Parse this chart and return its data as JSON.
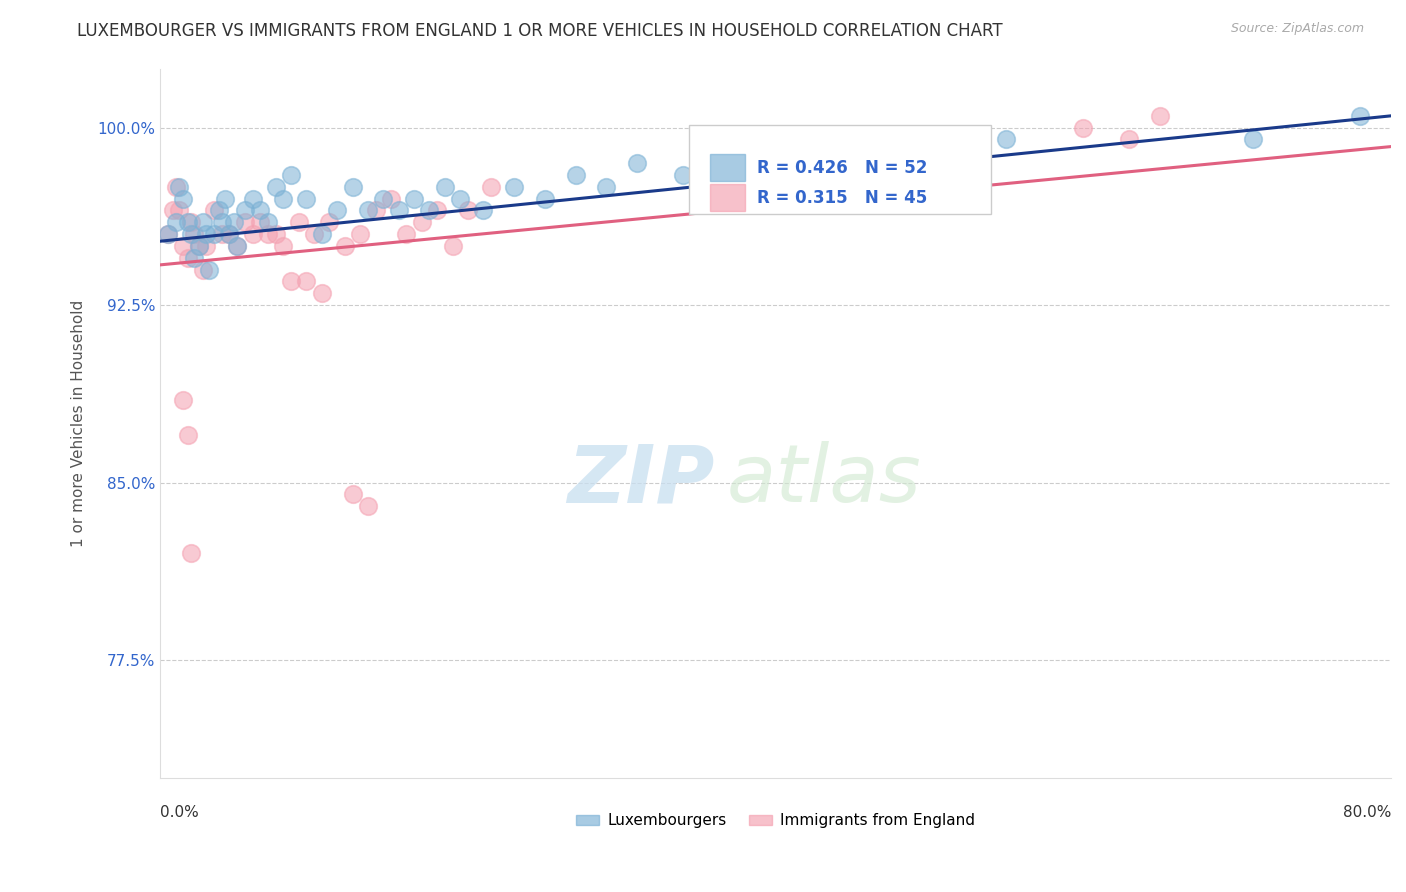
{
  "title": "LUXEMBOURGER VS IMMIGRANTS FROM ENGLAND 1 OR MORE VEHICLES IN HOUSEHOLD CORRELATION CHART",
  "source": "Source: ZipAtlas.com",
  "ylabel": "1 or more Vehicles in Household",
  "xlim": [
    0.0,
    80.0
  ],
  "ylim": [
    72.5,
    102.5
  ],
  "yticks": [
    77.5,
    85.0,
    92.5,
    100.0
  ],
  "ytick_labels": [
    "77.5%",
    "85.0%",
    "92.5%",
    "100.0%"
  ],
  "blue_R": 0.426,
  "blue_N": 52,
  "pink_R": 0.315,
  "pink_N": 45,
  "blue_color": "#7ab0d4",
  "pink_color": "#f4a0b0",
  "blue_line_color": "#1a3a8a",
  "pink_line_color": "#e06080",
  "legend_label_blue": "Luxembourgers",
  "legend_label_pink": "Immigrants from England",
  "watermark_zip": "ZIP",
  "watermark_atlas": "atlas",
  "background_color": "#ffffff",
  "title_fontsize": 12,
  "axis_label_fontsize": 11,
  "tick_label_fontsize": 11,
  "blue_x": [
    0.5,
    1.0,
    1.2,
    1.5,
    1.8,
    2.0,
    2.2,
    2.5,
    2.8,
    3.0,
    3.2,
    3.5,
    3.8,
    4.0,
    4.2,
    4.5,
    4.8,
    5.0,
    5.5,
    6.0,
    6.5,
    7.0,
    7.5,
    8.0,
    8.5,
    9.5,
    10.5,
    11.5,
    12.5,
    13.5,
    14.5,
    15.5,
    16.5,
    17.5,
    18.5,
    19.5,
    21.0,
    23.0,
    25.0,
    27.0,
    29.0,
    31.0,
    34.0,
    37.0,
    39.0,
    41.0,
    44.0,
    47.0,
    50.0,
    55.0,
    71.0,
    78.0
  ],
  "blue_y": [
    95.5,
    96.0,
    97.5,
    97.0,
    96.0,
    95.5,
    94.5,
    95.0,
    96.0,
    95.5,
    94.0,
    95.5,
    96.5,
    96.0,
    97.0,
    95.5,
    96.0,
    95.0,
    96.5,
    97.0,
    96.5,
    96.0,
    97.5,
    97.0,
    98.0,
    97.0,
    95.5,
    96.5,
    97.5,
    96.5,
    97.0,
    96.5,
    97.0,
    96.5,
    97.5,
    97.0,
    96.5,
    97.5,
    97.0,
    98.0,
    97.5,
    98.5,
    98.0,
    97.5,
    99.0,
    98.5,
    98.0,
    99.0,
    98.5,
    99.5,
    99.5,
    100.5
  ],
  "pink_x": [
    0.5,
    0.8,
    1.0,
    1.2,
    1.5,
    1.8,
    2.0,
    2.2,
    2.5,
    2.8,
    3.0,
    3.5,
    4.0,
    4.5,
    5.0,
    5.5,
    6.0,
    6.5,
    7.0,
    7.5,
    8.0,
    8.5,
    9.0,
    10.0,
    11.0,
    12.0,
    13.0,
    14.0,
    15.0,
    16.0,
    17.0,
    18.0,
    19.0,
    20.0,
    21.5,
    12.5,
    13.5,
    9.5,
    10.5,
    1.5,
    1.8,
    2.0,
    60.0,
    63.0,
    65.0
  ],
  "pink_y": [
    95.5,
    96.5,
    97.5,
    96.5,
    95.0,
    94.5,
    96.0,
    95.5,
    95.0,
    94.0,
    95.0,
    96.5,
    95.5,
    95.5,
    95.0,
    96.0,
    95.5,
    96.0,
    95.5,
    95.5,
    95.0,
    93.5,
    96.0,
    95.5,
    96.0,
    95.0,
    95.5,
    96.5,
    97.0,
    95.5,
    96.0,
    96.5,
    95.0,
    96.5,
    97.5,
    84.5,
    84.0,
    93.5,
    93.0,
    88.5,
    87.0,
    82.0,
    100.0,
    99.5,
    100.5
  ]
}
